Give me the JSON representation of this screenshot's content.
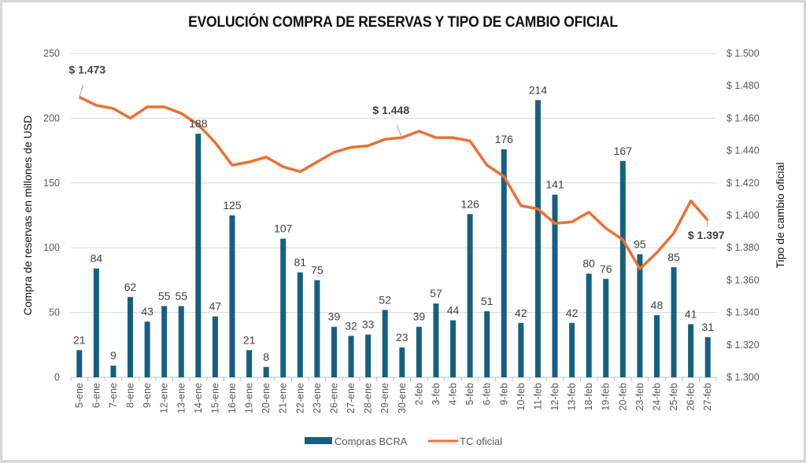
{
  "chart_data": {
    "type": "bar",
    "title": "EVOLUCIÓN COMPRA DE RESERVAS Y TIPO DE CAMBIO OFICIAL",
    "xlabel": "",
    "ylabel": "Compra de reservas en millones de USD",
    "y2label": "Tipo de cambio oficial",
    "ylim": [
      0,
      250
    ],
    "y2lim": [
      1300,
      1500
    ],
    "yticks": [
      "0",
      "50",
      "100",
      "150",
      "200",
      "250"
    ],
    "y2ticks": [
      "$ 1.300",
      "$ 1.320",
      "$ 1.340",
      "$ 1.360",
      "$ 1.380",
      "$ 1.400",
      "$ 1.420",
      "$ 1.440",
      "$ 1.460",
      "$ 1.480",
      "$ 1.500"
    ],
    "grid": true,
    "legend_position": "bottom",
    "categories": [
      "5-ene",
      "6-ene",
      "7-ene",
      "8-ene",
      "9-ene",
      "12-ene",
      "13-ene",
      "14-ene",
      "15-ene",
      "16-ene",
      "19-ene",
      "20-ene",
      "21-ene",
      "22-ene",
      "23-ene",
      "26-ene",
      "27-ene",
      "28-ene",
      "29-ene",
      "30-ene",
      "2-feb",
      "3-feb",
      "4-feb",
      "5-feb",
      "6-feb",
      "9-feb",
      "10-feb",
      "11-feb",
      "12-feb",
      "13-feb",
      "18-feb",
      "19-feb",
      "20-feb",
      "23-feb",
      "24-feb",
      "25-feb",
      "26-feb",
      "27-feb"
    ],
    "series": [
      {
        "name": "Compras BCRA",
        "type": "bar",
        "axis": "left",
        "color": "#156082",
        "values": [
          21,
          84,
          9,
          62,
          43,
          55,
          55,
          188,
          47,
          125,
          21,
          8,
          107,
          81,
          75,
          39,
          32,
          33,
          52,
          23,
          39,
          57,
          44,
          126,
          51,
          176,
          42,
          214,
          141,
          42,
          80,
          76,
          167,
          95,
          48,
          85,
          41,
          31
        ]
      },
      {
        "name": "TC oficial",
        "type": "line",
        "axis": "right",
        "color": "#E97132",
        "values": [
          1473,
          1468,
          1466,
          1460,
          1467,
          1467,
          1463,
          1456,
          1445,
          1431,
          1433,
          1436,
          1430,
          1427,
          1433,
          1439,
          1442,
          1443,
          1447,
          1448,
          1452,
          1448,
          1448,
          1446,
          1431,
          1424,
          1406,
          1404,
          1395,
          1396,
          1402,
          1392,
          1385,
          1367,
          1377,
          1389,
          1409,
          1397
        ]
      }
    ],
    "annotations": [
      {
        "category": "5-ene",
        "text": "$ 1.473"
      },
      {
        "category": "30-ene",
        "text": "$ 1.448"
      },
      {
        "category": "27-feb",
        "text": "$ 1.397"
      }
    ]
  }
}
